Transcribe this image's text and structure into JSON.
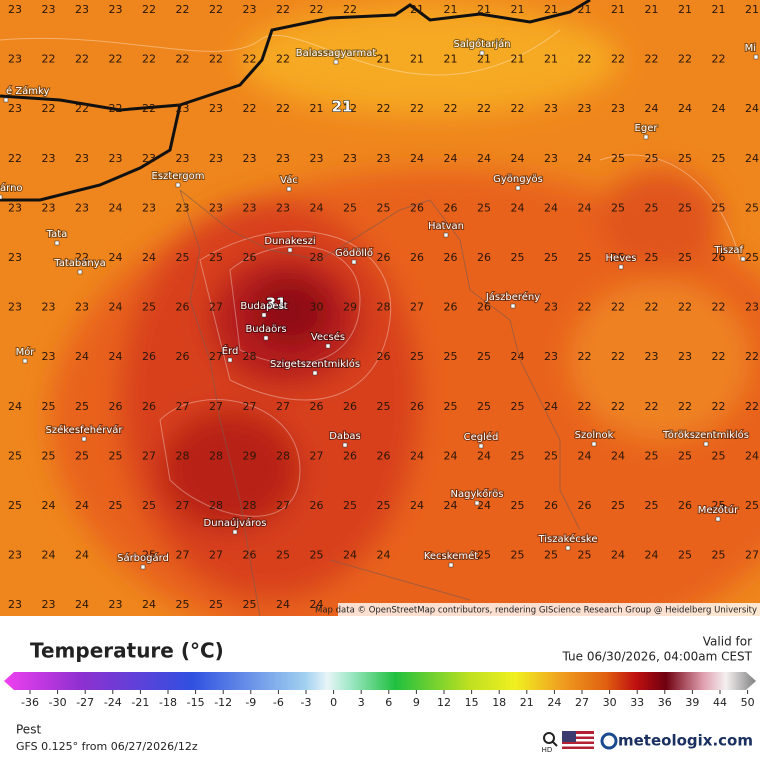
{
  "map": {
    "grid": [
      [
        23,
        23,
        23,
        23,
        22,
        22,
        22,
        23,
        22,
        22,
        22,
        null,
        21,
        21,
        21,
        21,
        21,
        21,
        21,
        21,
        21,
        21,
        21
      ],
      [
        23,
        22,
        22,
        22,
        22,
        22,
        22,
        22,
        22,
        null,
        null,
        21,
        21,
        21,
        21,
        21,
        21,
        22,
        22,
        22,
        22,
        22,
        null
      ],
      [
        23,
        22,
        22,
        22,
        22,
        23,
        23,
        22,
        22,
        21,
        22,
        22,
        22,
        22,
        22,
        22,
        23,
        23,
        23,
        24,
        24,
        24,
        24
      ],
      [
        22,
        23,
        23,
        23,
        23,
        23,
        23,
        23,
        23,
        23,
        23,
        23,
        24,
        24,
        24,
        24,
        23,
        24,
        25,
        25,
        25,
        25,
        24
      ],
      [
        23,
        23,
        23,
        24,
        23,
        23,
        23,
        23,
        23,
        24,
        25,
        25,
        26,
        26,
        25,
        24,
        24,
        24,
        25,
        25,
        25,
        25,
        25
      ],
      [
        23,
        null,
        22,
        24,
        24,
        25,
        25,
        26,
        null,
        28,
        null,
        26,
        26,
        26,
        26,
        25,
        25,
        25,
        25,
        25,
        25,
        26,
        25
      ],
      [
        23,
        23,
        23,
        24,
        25,
        26,
        27,
        null,
        null,
        30,
        29,
        28,
        27,
        26,
        26,
        null,
        23,
        22,
        22,
        22,
        22,
        22,
        23
      ],
      [
        null,
        23,
        24,
        24,
        26,
        26,
        27,
        28,
        null,
        null,
        null,
        26,
        25,
        25,
        25,
        24,
        23,
        22,
        22,
        23,
        23,
        22,
        22
      ],
      [
        24,
        25,
        25,
        26,
        26,
        27,
        27,
        27,
        27,
        26,
        26,
        25,
        26,
        25,
        25,
        25,
        24,
        22,
        22,
        22,
        22,
        22,
        22
      ],
      [
        25,
        25,
        25,
        25,
        27,
        28,
        28,
        29,
        28,
        27,
        26,
        26,
        24,
        24,
        24,
        25,
        25,
        24,
        24,
        25,
        25,
        25,
        24
      ],
      [
        25,
        24,
        24,
        25,
        25,
        27,
        28,
        28,
        27,
        26,
        25,
        25,
        24,
        24,
        24,
        25,
        26,
        26,
        25,
        25,
        26,
        25,
        25
      ],
      [
        23,
        24,
        24,
        null,
        25,
        27,
        27,
        26,
        25,
        25,
        24,
        24,
        null,
        null,
        25,
        25,
        25,
        25,
        24,
        24,
        25,
        25,
        27
      ],
      [
        23,
        23,
        24,
        23,
        24,
        25,
        25,
        25,
        24,
        24
      ]
    ],
    "extrema": [
      21,
      31
    ],
    "places": [
      "Balassagyarmat",
      "Salgótarján",
      "é Zámky",
      "árno",
      "Esztergom",
      "Vác",
      "Gyöngyös",
      "Eger",
      "Tata",
      "Tatabánya",
      "Dunakeszi",
      "Gödöllő",
      "Hatvan",
      "Heves",
      "Tiszaf",
      "Budapest",
      "Budaörs",
      "Jászberény",
      "Vecsés",
      "Érd",
      "Szigetszentmiklós",
      "Mór",
      "Székesfehérvár",
      "Dabas",
      "Cegléd",
      "Szolnok",
      "Törökszentmiklós",
      "Nagykőrös",
      "Mezőtúr",
      "Dunaújváros",
      "Tiszakécske",
      "Sárbogárd",
      "Kecskemét",
      "Mi"
    ],
    "attribution": "Map data © OpenStreetMap contributors, rendering GIScience Research Group @ Heidelberg University"
  },
  "legend": {
    "title": "Temperature (°C)",
    "valid_label": "Valid for",
    "valid_time": "Tue 06/30/2026, 04:00am CEST",
    "scale_ticks": [
      -36,
      -30,
      -27,
      -24,
      -21,
      -18,
      -15,
      -12,
      -9,
      -6,
      -3,
      0,
      3,
      6,
      9,
      12,
      15,
      18,
      21,
      24,
      27,
      30,
      33,
      36,
      39,
      44,
      50
    ],
    "region": "Pest",
    "model": "GFS 0.125° from 06/27/2026/12z",
    "hd": "HD",
    "brand": "meteologix.com"
  }
}
